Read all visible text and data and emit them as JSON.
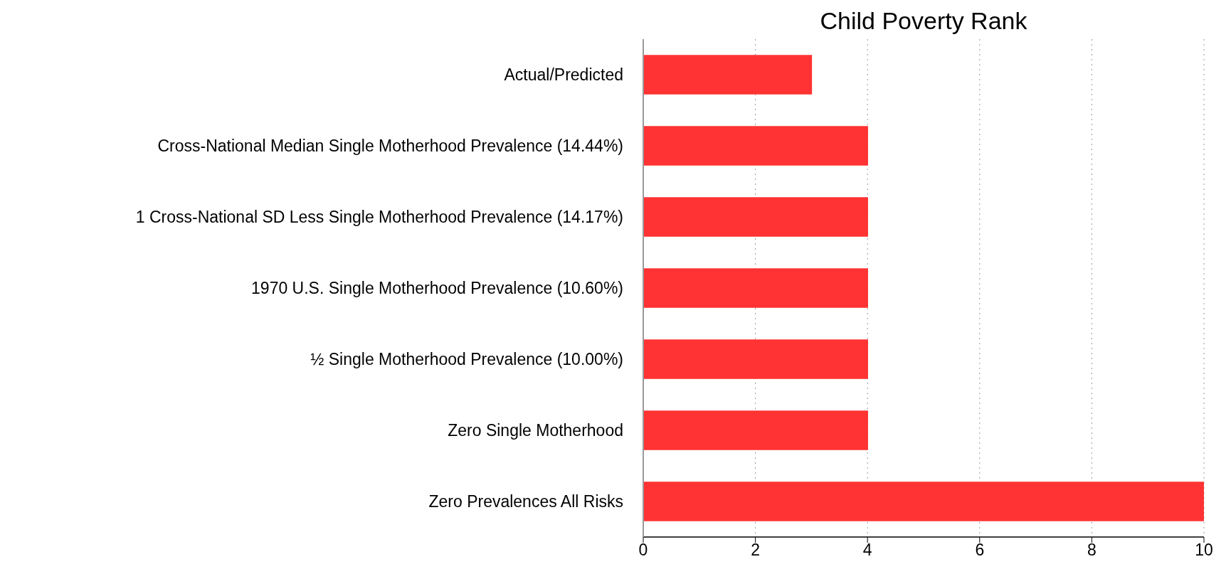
{
  "chart_data": {
    "type": "bar",
    "orientation": "horizontal",
    "title": "Child Poverty Rank",
    "categories": [
      "Actual/Predicted",
      "Cross-National Median Single Motherhood Prevalence (14.44%)",
      "1 Cross-National SD Less Single Motherhood Prevalence (14.17%)",
      "1970 U.S. Single Motherhood Prevalence (10.60%)",
      "½ Single Motherhood Prevalence (10.00%)",
      "Zero Single Motherhood",
      "Zero Prevalences All Risks"
    ],
    "values": [
      3,
      4,
      4,
      4,
      4,
      4,
      10
    ],
    "color": "#ff3333",
    "xlim": [
      0,
      10
    ],
    "xticks": [
      0,
      2,
      4,
      6,
      8,
      10
    ],
    "grid": "x"
  }
}
